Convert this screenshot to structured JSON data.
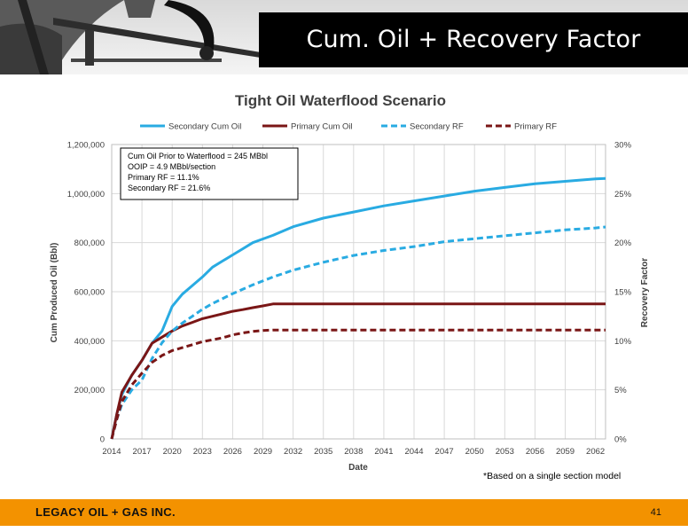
{
  "slide": {
    "title": "Cum. Oil + Recovery Factor",
    "company": "LEGACY OIL + GAS INC.",
    "page_number": "41",
    "footnote": "*Based on a single section model",
    "accent_color": "#f39200"
  },
  "chart_data": {
    "type": "line",
    "title": "Tight Oil Waterflood Scenario",
    "xlabel": "Date",
    "ylabel": "Cum Produced Oil (Bbl)",
    "y2label": "Recovery Factor",
    "xlim": [
      2014,
      2063
    ],
    "ylim": [
      0,
      1200000
    ],
    "y2lim": [
      0,
      30
    ],
    "x_ticks": [
      "2014",
      "2017",
      "2020",
      "2023",
      "2026",
      "2029",
      "2032",
      "2035",
      "2038",
      "2041",
      "2044",
      "2047",
      "2050",
      "2053",
      "2056",
      "2059",
      "2062"
    ],
    "y_ticks": [
      "0",
      "200,000",
      "400,000",
      "600,000",
      "800,000",
      "1,000,000",
      "1,200,000"
    ],
    "y2_ticks": [
      "0%",
      "5%",
      "10%",
      "15%",
      "20%",
      "25%",
      "30%"
    ],
    "grid": true,
    "legend_position": "top",
    "annotation": [
      "Cum Oil Prior to Waterflood = 245 MBbl",
      "OOIP = 4.9 MBbl/section",
      "Primary RF = 11.1%",
      "Secondary RF = 21.6%"
    ],
    "series": [
      {
        "name": "Secondary Cum Oil",
        "axis": "left",
        "color": "#29abe2",
        "style": "solid",
        "x": [
          2014,
          2014.5,
          2015,
          2016,
          2017,
          2018,
          2019,
          2020,
          2021,
          2022,
          2023,
          2024,
          2025,
          2026,
          2027,
          2028,
          2029,
          2030,
          2032,
          2035,
          2038,
          2041,
          2044,
          2047,
          2050,
          2053,
          2056,
          2059,
          2062,
          2063
        ],
        "y": [
          0,
          100000,
          180000,
          260000,
          320000,
          390000,
          440000,
          540000,
          590000,
          625000,
          660000,
          700000,
          725000,
          750000,
          775000,
          800000,
          815000,
          830000,
          865000,
          900000,
          925000,
          950000,
          970000,
          990000,
          1010000,
          1025000,
          1040000,
          1050000,
          1060000,
          1062000
        ]
      },
      {
        "name": "Primary Cum Oil",
        "axis": "left",
        "color": "#7a1616",
        "style": "solid",
        "x": [
          2014,
          2014.5,
          2015,
          2016,
          2017,
          2018,
          2019,
          2020,
          2021,
          2022,
          2023,
          2024,
          2025,
          2026,
          2027,
          2028,
          2029,
          2030,
          2063
        ],
        "y": [
          0,
          100000,
          190000,
          260000,
          320000,
          390000,
          415000,
          440000,
          460000,
          475000,
          490000,
          500000,
          510000,
          520000,
          527000,
          535000,
          542000,
          550000,
          550000
        ]
      },
      {
        "name": "Secondary RF",
        "axis": "right",
        "color": "#29abe2",
        "style": "dashed",
        "x": [
          2014,
          2014.5,
          2015,
          2016,
          2017,
          2018,
          2019,
          2020,
          2021,
          2022,
          2023,
          2024,
          2026,
          2028,
          2030,
          2032,
          2035,
          2038,
          2041,
          2044,
          2047,
          2050,
          2053,
          2056,
          2059,
          2062,
          2063
        ],
        "y": [
          0,
          2.0,
          3.5,
          5.0,
          6.0,
          8.2,
          9.8,
          11.0,
          11.8,
          12.5,
          13.2,
          13.8,
          14.8,
          15.7,
          16.5,
          17.2,
          18.0,
          18.7,
          19.2,
          19.6,
          20.1,
          20.4,
          20.7,
          21.0,
          21.3,
          21.5,
          21.6
        ]
      },
      {
        "name": "Primary RF",
        "axis": "right",
        "color": "#7a1616",
        "style": "dashed",
        "x": [
          2014,
          2014.5,
          2015,
          2016,
          2017,
          2018,
          2019,
          2020,
          2021,
          2022,
          2023,
          2024,
          2025,
          2026,
          2027,
          2028,
          2029,
          2030,
          2063
        ],
        "y": [
          0,
          2.0,
          3.8,
          5.5,
          6.7,
          7.8,
          8.5,
          9.0,
          9.3,
          9.6,
          9.9,
          10.1,
          10.3,
          10.6,
          10.8,
          10.95,
          11.05,
          11.1,
          11.1
        ]
      }
    ]
  }
}
